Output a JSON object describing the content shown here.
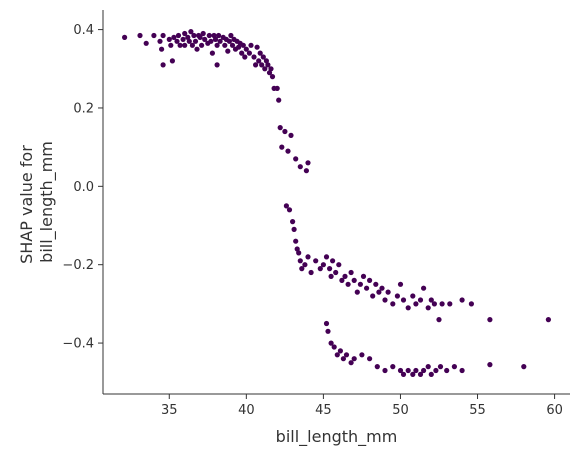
{
  "chart_data": {
    "type": "scatter",
    "title": "",
    "xlabel": "bill_length_mm",
    "ylabel_lines": [
      "SHAP value for",
      "bill_length_mm"
    ],
    "xlim": [
      30.7,
      61.0
    ],
    "ylim": [
      -0.53,
      0.45
    ],
    "xticks": [
      35,
      40,
      45,
      50,
      55,
      60
    ],
    "xtick_labels": [
      "35",
      "40",
      "45",
      "50",
      "55",
      "60"
    ],
    "yticks": [
      -0.4,
      -0.2,
      0.0,
      0.2,
      0.4
    ],
    "ytick_labels": [
      "−0.4",
      "−0.2",
      "0.0",
      "0.2",
      "0.4"
    ],
    "point_color": "#440154",
    "axis_color": "#333333",
    "points": [
      [
        32.1,
        0.38
      ],
      [
        33.1,
        0.385
      ],
      [
        33.5,
        0.365
      ],
      [
        34.0,
        0.385
      ],
      [
        34.4,
        0.37
      ],
      [
        34.5,
        0.35
      ],
      [
        34.6,
        0.385
      ],
      [
        34.6,
        0.31
      ],
      [
        35.0,
        0.375
      ],
      [
        35.1,
        0.36
      ],
      [
        35.2,
        0.32
      ],
      [
        35.3,
        0.38
      ],
      [
        35.5,
        0.37
      ],
      [
        35.6,
        0.385
      ],
      [
        35.7,
        0.36
      ],
      [
        35.9,
        0.375
      ],
      [
        36.0,
        0.39
      ],
      [
        36.0,
        0.36
      ],
      [
        36.2,
        0.38
      ],
      [
        36.3,
        0.37
      ],
      [
        36.4,
        0.395
      ],
      [
        36.5,
        0.36
      ],
      [
        36.6,
        0.385
      ],
      [
        36.7,
        0.37
      ],
      [
        36.8,
        0.35
      ],
      [
        36.9,
        0.385
      ],
      [
        37.0,
        0.38
      ],
      [
        37.1,
        0.36
      ],
      [
        37.2,
        0.39
      ],
      [
        37.3,
        0.375
      ],
      [
        37.5,
        0.365
      ],
      [
        37.6,
        0.385
      ],
      [
        37.7,
        0.37
      ],
      [
        37.8,
        0.34
      ],
      [
        37.9,
        0.385
      ],
      [
        38.0,
        0.375
      ],
      [
        38.1,
        0.36
      ],
      [
        38.1,
        0.31
      ],
      [
        38.2,
        0.385
      ],
      [
        38.3,
        0.37
      ],
      [
        38.5,
        0.38
      ],
      [
        38.6,
        0.36
      ],
      [
        38.7,
        0.375
      ],
      [
        38.8,
        0.345
      ],
      [
        38.9,
        0.37
      ],
      [
        39.0,
        0.385
      ],
      [
        39.1,
        0.36
      ],
      [
        39.2,
        0.375
      ],
      [
        39.3,
        0.35
      ],
      [
        39.4,
        0.37
      ],
      [
        39.5,
        0.355
      ],
      [
        39.6,
        0.365
      ],
      [
        39.7,
        0.34
      ],
      [
        39.8,
        0.36
      ],
      [
        39.9,
        0.33
      ],
      [
        40.0,
        0.35
      ],
      [
        40.2,
        0.34
      ],
      [
        40.3,
        0.36
      ],
      [
        40.5,
        0.33
      ],
      [
        40.6,
        0.31
      ],
      [
        40.7,
        0.355
      ],
      [
        40.8,
        0.32
      ],
      [
        40.9,
        0.34
      ],
      [
        41.0,
        0.31
      ],
      [
        41.1,
        0.33
      ],
      [
        41.2,
        0.3
      ],
      [
        41.3,
        0.32
      ],
      [
        41.4,
        0.31
      ],
      [
        41.5,
        0.29
      ],
      [
        41.6,
        0.3
      ],
      [
        41.7,
        0.28
      ],
      [
        41.8,
        0.25
      ],
      [
        42.0,
        0.25
      ],
      [
        42.1,
        0.22
      ],
      [
        42.2,
        0.15
      ],
      [
        42.3,
        0.1
      ],
      [
        42.5,
        0.14
      ],
      [
        42.7,
        0.09
      ],
      [
        42.9,
        0.13
      ],
      [
        43.2,
        0.07
      ],
      [
        43.5,
        0.05
      ],
      [
        43.9,
        0.04
      ],
      [
        44.0,
        0.06
      ],
      [
        42.6,
        -0.05
      ],
      [
        42.8,
        -0.06
      ],
      [
        43.0,
        -0.09
      ],
      [
        43.1,
        -0.11
      ],
      [
        43.2,
        -0.14
      ],
      [
        43.3,
        -0.16
      ],
      [
        43.4,
        -0.17
      ],
      [
        43.5,
        -0.19
      ],
      [
        43.6,
        -0.21
      ],
      [
        43.8,
        -0.2
      ],
      [
        44.0,
        -0.18
      ],
      [
        44.2,
        -0.22
      ],
      [
        44.5,
        -0.19
      ],
      [
        44.8,
        -0.21
      ],
      [
        45.0,
        -0.2
      ],
      [
        45.2,
        -0.18
      ],
      [
        45.4,
        -0.21
      ],
      [
        45.5,
        -0.23
      ],
      [
        45.6,
        -0.19
      ],
      [
        45.8,
        -0.22
      ],
      [
        46.0,
        -0.2
      ],
      [
        46.2,
        -0.24
      ],
      [
        46.4,
        -0.23
      ],
      [
        46.6,
        -0.25
      ],
      [
        46.8,
        -0.22
      ],
      [
        47.0,
        -0.24
      ],
      [
        47.2,
        -0.27
      ],
      [
        47.4,
        -0.25
      ],
      [
        47.6,
        -0.23
      ],
      [
        47.8,
        -0.26
      ],
      [
        48.0,
        -0.24
      ],
      [
        48.2,
        -0.28
      ],
      [
        48.4,
        -0.25
      ],
      [
        48.6,
        -0.27
      ],
      [
        48.8,
        -0.26
      ],
      [
        49.0,
        -0.29
      ],
      [
        49.2,
        -0.27
      ],
      [
        49.5,
        -0.3
      ],
      [
        49.8,
        -0.28
      ],
      [
        50.0,
        -0.25
      ],
      [
        50.2,
        -0.29
      ],
      [
        50.5,
        -0.31
      ],
      [
        50.8,
        -0.28
      ],
      [
        51.0,
        -0.3
      ],
      [
        51.3,
        -0.29
      ],
      [
        51.5,
        -0.26
      ],
      [
        51.8,
        -0.31
      ],
      [
        52.0,
        -0.29
      ],
      [
        52.2,
        -0.3
      ],
      [
        52.5,
        -0.34
      ],
      [
        52.7,
        -0.3
      ],
      [
        53.2,
        -0.3
      ],
      [
        54.0,
        -0.29
      ],
      [
        54.6,
        -0.3
      ],
      [
        55.8,
        -0.34
      ],
      [
        45.2,
        -0.35
      ],
      [
        45.3,
        -0.37
      ],
      [
        45.5,
        -0.4
      ],
      [
        45.7,
        -0.41
      ],
      [
        45.9,
        -0.43
      ],
      [
        46.1,
        -0.42
      ],
      [
        46.3,
        -0.44
      ],
      [
        46.5,
        -0.43
      ],
      [
        46.8,
        -0.45
      ],
      [
        47.0,
        -0.44
      ],
      [
        47.5,
        -0.43
      ],
      [
        48.0,
        -0.44
      ],
      [
        48.5,
        -0.46
      ],
      [
        49.0,
        -0.47
      ],
      [
        49.5,
        -0.46
      ],
      [
        50.0,
        -0.47
      ],
      [
        50.2,
        -0.48
      ],
      [
        50.5,
        -0.47
      ],
      [
        50.8,
        -0.48
      ],
      [
        51.0,
        -0.47
      ],
      [
        51.3,
        -0.48
      ],
      [
        51.5,
        -0.47
      ],
      [
        51.8,
        -0.46
      ],
      [
        52.0,
        -0.48
      ],
      [
        52.3,
        -0.47
      ],
      [
        52.6,
        -0.46
      ],
      [
        53.0,
        -0.47
      ],
      [
        53.5,
        -0.46
      ],
      [
        54.0,
        -0.47
      ],
      [
        55.8,
        -0.455
      ],
      [
        58.0,
        -0.46
      ],
      [
        59.6,
        -0.34
      ]
    ]
  }
}
